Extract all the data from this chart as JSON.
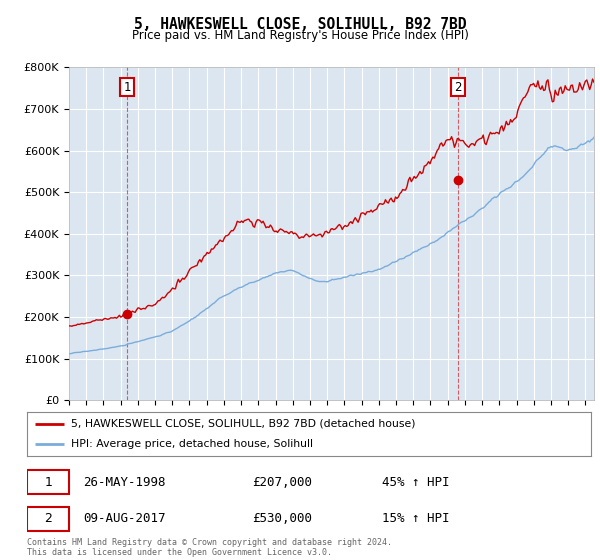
{
  "title": "5, HAWKESWELL CLOSE, SOLIHULL, B92 7BD",
  "subtitle": "Price paid vs. HM Land Registry's House Price Index (HPI)",
  "ylim": [
    0,
    800000
  ],
  "yticks": [
    0,
    100000,
    200000,
    300000,
    400000,
    500000,
    600000,
    700000,
    800000
  ],
  "ytick_labels": [
    "£0",
    "£100K",
    "£200K",
    "£300K",
    "£400K",
    "£500K",
    "£600K",
    "£700K",
    "£800K"
  ],
  "xlim_start": 1995.0,
  "xlim_end": 2025.5,
  "background_color": "#dce6f1",
  "grid_color": "#ffffff",
  "red_color": "#cc0000",
  "blue_color": "#7aaddb",
  "marker1_year": 1998.38,
  "marker1_value": 207000,
  "marker2_year": 2017.6,
  "marker2_value": 530000,
  "legend_red": "5, HAWKESWELL CLOSE, SOLIHULL, B92 7BD (detached house)",
  "legend_blue": "HPI: Average price, detached house, Solihull",
  "ann1_date": "26-MAY-1998",
  "ann1_price": "£207,000",
  "ann1_hpi": "45% ↑ HPI",
  "ann2_date": "09-AUG-2017",
  "ann2_price": "£530,000",
  "ann2_hpi": "15% ↑ HPI",
  "footer": "Contains HM Land Registry data © Crown copyright and database right 2024.\nThis data is licensed under the Open Government Licence v3.0."
}
